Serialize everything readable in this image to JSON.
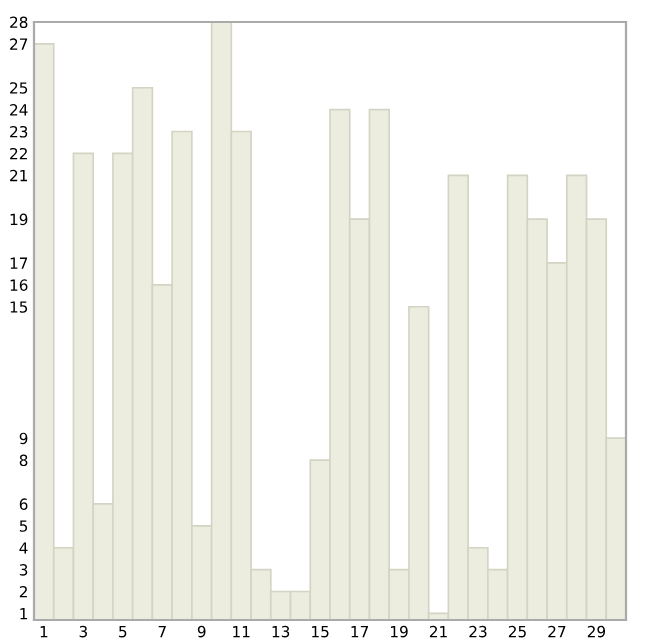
{
  "chart_data": {
    "type": "bar",
    "categories": [
      "1",
      null,
      "3",
      null,
      "5",
      null,
      "7",
      null,
      "9",
      null,
      "11",
      null,
      "13",
      null,
      "15",
      null,
      "17",
      null,
      "19",
      null,
      "21",
      null,
      "23",
      null,
      "25",
      null,
      "27",
      null,
      "29",
      null
    ],
    "values": [
      27,
      4,
      22,
      6,
      22,
      25,
      16,
      23,
      5,
      28,
      23,
      3,
      2,
      2,
      8,
      24,
      19,
      24,
      3,
      15,
      1,
      21,
      4,
      3,
      21,
      19,
      17,
      21,
      19,
      9
    ],
    "color": "#ecedde",
    "ylim": [
      0.7,
      28
    ],
    "yticks": [
      1,
      2,
      3,
      4,
      5,
      6,
      8,
      9,
      15,
      16,
      17,
      19,
      21,
      22,
      23,
      24,
      25,
      27,
      28
    ],
    "grid": false
  }
}
